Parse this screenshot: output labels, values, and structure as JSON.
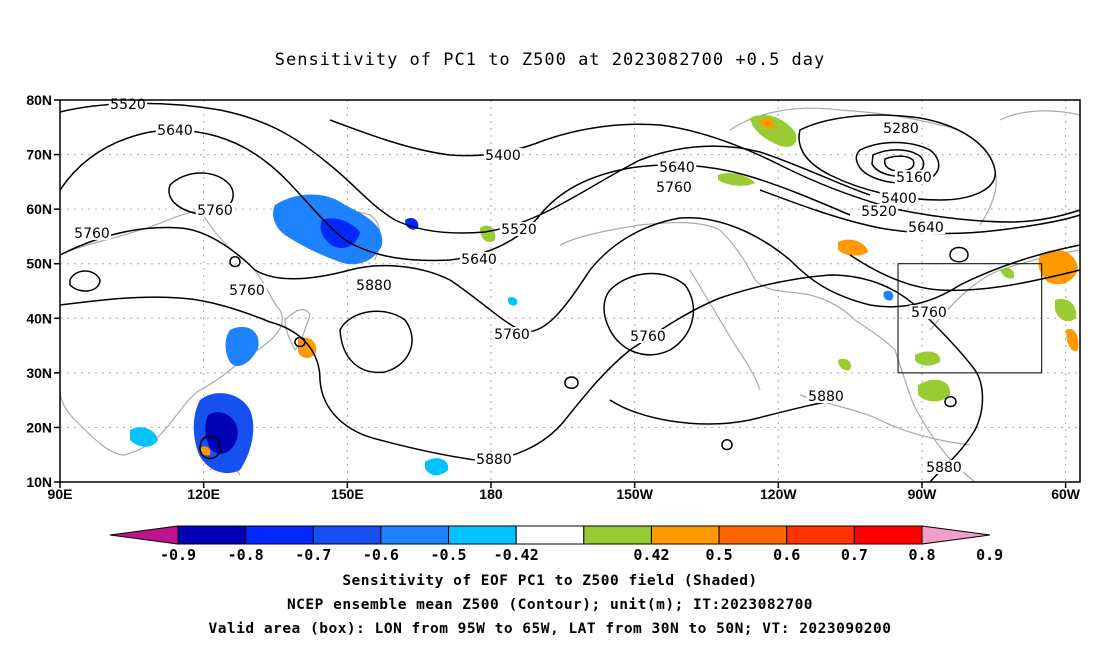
{
  "title": "Sensitivity of PC1 to Z500 at 2023082700 +0.5 day",
  "lat_labels": [
    "80N",
    "70N",
    "60N",
    "50N",
    "40N",
    "30N",
    "20N",
    "10N"
  ],
  "lon_labels": [
    "90E",
    "120E",
    "150E",
    "180",
    "150W",
    "120W",
    "90W",
    "60W"
  ],
  "contour_labels": [
    {
      "text": "5520"
    },
    {
      "text": "5640"
    },
    {
      "text": "5760"
    },
    {
      "text": "5760"
    },
    {
      "text": "5760"
    },
    {
      "text": "5880"
    },
    {
      "text": "5400"
    },
    {
      "text": "5520"
    },
    {
      "text": "5640"
    },
    {
      "text": "5760"
    },
    {
      "text": "5640"
    },
    {
      "text": "5760"
    },
    {
      "text": "5760"
    },
    {
      "text": "5880"
    },
    {
      "text": "5880"
    },
    {
      "text": "5280"
    },
    {
      "text": "5160"
    },
    {
      "text": "5400"
    },
    {
      "text": "5520"
    },
    {
      "text": "5640"
    },
    {
      "text": "5760"
    },
    {
      "text": "5880"
    }
  ],
  "colorbar": {
    "colors": [
      "#c0148c",
      "#0000b4",
      "#0028ff",
      "#1650f0",
      "#1e82ff",
      "#00c3ff",
      "#ffffff",
      "#99cc33",
      "#ff9900",
      "#ff6600",
      "#ff3300",
      "#ff0000",
      "#f0a0c8"
    ],
    "labels": [
      "-0.9",
      "-0.8",
      "-0.7",
      "-0.6",
      "-0.5",
      "-0.42",
      "0.42",
      "0.5",
      "0.6",
      "0.7",
      "0.8",
      "0.9"
    ]
  },
  "valid_box": {
    "lon_min": -95,
    "lon_max": -65,
    "lat_min": 30,
    "lat_max": 50
  },
  "captions": [
    "Sensitivity of EOF PC1 to Z500 field (Shaded)",
    "NCEP ensemble mean Z500 (Contour); unit(m); IT:2023082700",
    "Valid area (box): LON from 95W to 65W, LAT from 30N to 50N; VT: 2023090200"
  ]
}
